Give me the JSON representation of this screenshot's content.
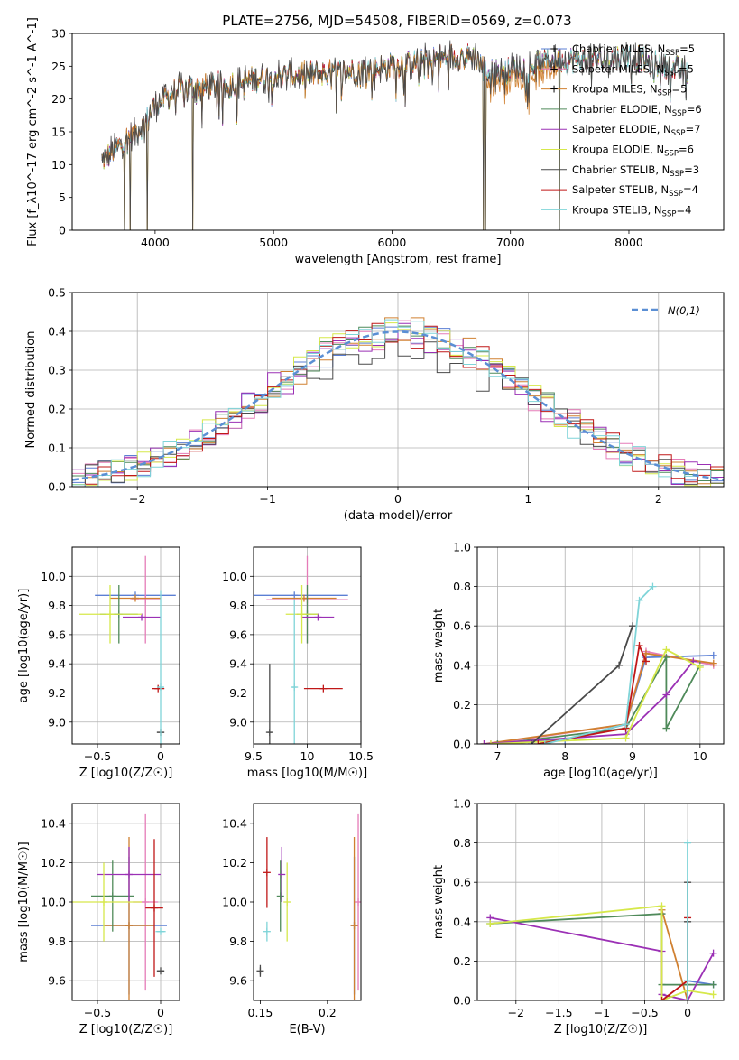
{
  "figure": {
    "title": "PLATE=2756, MJD=54508, FIBERID=0569, z=0.073"
  },
  "models": [
    {
      "name": "Chabrier MILES, N_SSP=5",
      "label_main": "Chabrier MILES, N",
      "label_sub": "SSP",
      "label_end": "=5",
      "color": "#5b7fd4"
    },
    {
      "name": "Salpeter MILES, N_SSP=5",
      "label_main": "Salpeter MILES, N",
      "label_sub": "SSP",
      "label_end": "=5",
      "color": "#e57bb8"
    },
    {
      "name": "Kroupa MILES, N_SSP=5",
      "label_main": "Kroupa MILES, N",
      "label_sub": "SSP",
      "label_end": "=5",
      "color": "#d08030"
    },
    {
      "name": "Chabrier ELODIE, N_SSP=6",
      "label_main": "Chabrier ELODIE, N",
      "label_sub": "SSP",
      "label_end": "=6",
      "color": "#4f8a5a"
    },
    {
      "name": "Salpeter ELODIE, N_SSP=7",
      "label_main": "Salpeter ELODIE, N",
      "label_sub": "SSP",
      "label_end": "=7",
      "color": "#9b30b5"
    },
    {
      "name": "Kroupa ELODIE, N_SSP=6",
      "label_main": "Kroupa ELODIE, N",
      "label_sub": "SSP",
      "label_end": "=6",
      "color": "#d6e84a"
    },
    {
      "name": "Chabrier STELIB, N_SSP=3",
      "label_main": "Chabrier STELIB, N",
      "label_sub": "SSP",
      "label_end": "=3",
      "color": "#4a4a4a"
    },
    {
      "name": "Salpeter STELIB, N_SSP=4",
      "label_main": "Salpeter STELIB, N",
      "label_sub": "SSP",
      "label_end": "=4",
      "color": "#c01818"
    },
    {
      "name": "Kroupa STELIB, N_SSP=4",
      "label_main": "Kroupa STELIB, N",
      "label_sub": "SSP",
      "label_end": "=4",
      "color": "#7fd4d8"
    }
  ],
  "chart_data": [
    {
      "id": "spectrum",
      "type": "line",
      "xlabel": "wavelength [Angstrom, rest frame]",
      "ylabel": "Flux [f_λ10^-17 erg cm^-2 s^-1 A^-1]",
      "xlim": [
        3300,
        8800
      ],
      "ylim": [
        0,
        30
      ],
      "xticks": [
        4000,
        5000,
        6000,
        7000,
        8000
      ],
      "yticks": [
        0,
        5,
        10,
        15,
        20,
        25,
        30
      ],
      "grid": false,
      "legend": "right",
      "continuum": {
        "x": [
          3550,
          3700,
          3900,
          4000,
          4200,
          4500,
          5000,
          5500,
          6000,
          6500,
          6700,
          6800,
          7000,
          7400,
          7800,
          8000,
          8500
        ],
        "y": [
          10.5,
          13,
          16,
          19,
          21.5,
          22,
          23.5,
          24,
          25,
          26.5,
          26.5,
          24,
          24.5,
          26,
          26,
          26.5,
          24
        ]
      },
      "drops": [
        3740,
        3790,
        3935,
        4320,
        6770,
        6790,
        7415
      ]
    },
    {
      "id": "residuals",
      "type": "histogram",
      "xlabel": "(data-model)/error",
      "ylabel": "Normed distribution",
      "xlim": [
        -2.5,
        2.5
      ],
      "ylim": [
        0,
        0.5
      ],
      "xticks": [
        -2,
        -1,
        0,
        1,
        2
      ],
      "yticks": [
        0.0,
        0.1,
        0.2,
        0.3,
        0.4,
        0.5
      ],
      "grid": true,
      "legend": "top-right",
      "reference_label": "N(0,1)",
      "reference_color": "#5b8fd4",
      "bins": 50
    },
    {
      "id": "age-vs-Z",
      "type": "scatter",
      "xlabel": "Z [log10(Z/Z☉)]",
      "ylabel": "age  [log10(age/yr)]",
      "xlim": [
        -0.7,
        0.15
      ],
      "ylim": [
        8.85,
        10.2
      ],
      "xticks": [
        -0.5,
        0.0
      ],
      "yticks": [
        9.0,
        9.2,
        9.4,
        9.6,
        9.8,
        10.0
      ],
      "grid": true,
      "points": [
        {
          "x": -0.2,
          "y": 9.87,
          "xerr": 0.32,
          "yerr": 0.0
        },
        {
          "x": -0.12,
          "y": 9.84,
          "xerr": 0.12,
          "yerr": 0.3
        },
        {
          "x": -0.2,
          "y": 9.85,
          "xerr": 0.2,
          "yerr": 0.0
        },
        {
          "x": -0.33,
          "y": 9.74,
          "xerr": 0.15,
          "yerr": 0.2
        },
        {
          "x": -0.15,
          "y": 9.72,
          "xerr": 0.15,
          "yerr": 0.0
        },
        {
          "x": -0.4,
          "y": 9.74,
          "xerr": 0.25,
          "yerr": 0.2
        },
        {
          "x": 0.0,
          "y": 8.93,
          "xerr": 0.03,
          "yerr": 0.0
        },
        {
          "x": -0.02,
          "y": 9.23,
          "xerr": 0.05,
          "yerr": 0.0
        },
        {
          "x": 0.0,
          "y": 9.24,
          "xerr": 0.02,
          "yerr": 0.66
        }
      ]
    },
    {
      "id": "age-vs-mass",
      "type": "scatter",
      "xlabel": "mass [log10(M/M☉)]",
      "ylabel": "",
      "xlim": [
        9.5,
        10.5
      ],
      "ylim": [
        8.85,
        10.2
      ],
      "xticks": [
        9.5,
        10.0,
        10.5
      ],
      "yticks": [
        9.0,
        9.2,
        9.4,
        9.6,
        9.8,
        10.0
      ],
      "grid": true,
      "points": [
        {
          "x": 9.88,
          "y": 9.87,
          "xerr": 0.5,
          "yerr": 0.0
        },
        {
          "x": 10.0,
          "y": 9.84,
          "xerr": 0.38,
          "yerr": 0.3
        },
        {
          "x": 9.97,
          "y": 9.85,
          "xerr": 0.3,
          "yerr": 0.0
        },
        {
          "x": 10.0,
          "y": 9.74,
          "xerr": 0.1,
          "yerr": 0.2
        },
        {
          "x": 10.1,
          "y": 9.72,
          "xerr": 0.15,
          "yerr": 0.0
        },
        {
          "x": 9.95,
          "y": 9.74,
          "xerr": 0.15,
          "yerr": 0.2
        },
        {
          "x": 9.65,
          "y": 8.93,
          "xerr": 0.02,
          "yerr": 0.47
        },
        {
          "x": 10.15,
          "y": 9.23,
          "xerr": 0.18,
          "yerr": 0.0
        },
        {
          "x": 9.88,
          "y": 9.24,
          "xerr": 0.02,
          "yerr": 0.6
        }
      ]
    },
    {
      "id": "weight-vs-age",
      "type": "line",
      "xlabel": "age  [log10(age/yr)]",
      "ylabel": "mass weight",
      "xlim": [
        6.7,
        10.35
      ],
      "ylim": [
        0,
        1
      ],
      "xticks": [
        7,
        8,
        9,
        10
      ],
      "yticks": [
        0.0,
        0.2,
        0.4,
        0.6,
        0.8,
        1.0
      ],
      "grid": true,
      "series": [
        {
          "x": [
            7.0,
            8.0,
            8.9,
            9.2,
            10.2
          ],
          "y": [
            0.0,
            0.02,
            0.1,
            0.44,
            0.45
          ]
        },
        {
          "x": [
            6.9,
            8.9,
            9.2,
            10.2
          ],
          "y": [
            0.0,
            0.1,
            0.47,
            0.4
          ]
        },
        {
          "x": [
            6.8,
            8.9,
            9.2,
            10.2
          ],
          "y": [
            0.0,
            0.1,
            0.46,
            0.41
          ]
        },
        {
          "x": [
            7.0,
            8.9,
            9.5,
            9.5,
            10.0
          ],
          "y": [
            0.0,
            0.08,
            0.44,
            0.08,
            0.4
          ]
        },
        {
          "x": [
            6.8,
            8.9,
            9.5,
            9.9
          ],
          "y": [
            0.0,
            0.05,
            0.25,
            0.42
          ]
        },
        {
          "x": [
            6.9,
            8.9,
            9.5,
            10.0
          ],
          "y": [
            0.0,
            0.03,
            0.48,
            0.39
          ]
        },
        {
          "x": [
            7.5,
            8.8,
            9.0
          ],
          "y": [
            0.0,
            0.4,
            0.6
          ]
        },
        {
          "x": [
            7.6,
            8.9,
            9.1,
            9.2
          ],
          "y": [
            0.0,
            0.08,
            0.5,
            0.42
          ]
        },
        {
          "x": [
            7.7,
            8.9,
            9.1,
            9.3
          ],
          "y": [
            0.0,
            0.1,
            0.73,
            0.8
          ]
        }
      ]
    },
    {
      "id": "mass-vs-Z",
      "type": "scatter",
      "xlabel": "Z [log10(Z/Z☉)]",
      "ylabel": "mass [log10(M/M☉)]",
      "xlim": [
        -0.7,
        0.15
      ],
      "ylim": [
        9.5,
        10.5
      ],
      "xticks": [
        -0.5,
        0.0
      ],
      "yticks": [
        9.6,
        9.8,
        10.0,
        10.2,
        10.4
      ],
      "grid": true,
      "points": [
        {
          "x": -0.25,
          "y": 9.88,
          "xerr": 0.3,
          "yerr": 0.35
        },
        {
          "x": -0.12,
          "y": 10.0,
          "xerr": 0.1,
          "yerr": 0.45
        },
        {
          "x": -0.25,
          "y": 9.88,
          "xerr": 0.2,
          "yerr": 0.45
        },
        {
          "x": -0.38,
          "y": 10.03,
          "xerr": 0.17,
          "yerr": 0.18
        },
        {
          "x": -0.25,
          "y": 10.14,
          "xerr": 0.25,
          "yerr": 0.14
        },
        {
          "x": -0.45,
          "y": 10.0,
          "xerr": 0.3,
          "yerr": 0.2
        },
        {
          "x": 0.0,
          "y": 9.65,
          "xerr": 0.03,
          "yerr": 0.0
        },
        {
          "x": -0.05,
          "y": 9.97,
          "xerr": 0.07,
          "yerr": 0.35
        },
        {
          "x": 0.0,
          "y": 9.85,
          "xerr": 0.04,
          "yerr": 0.0
        }
      ]
    },
    {
      "id": "mass-vs-EBV",
      "type": "scatter",
      "xlabel": "E(B-V)",
      "ylabel": "",
      "xlim": [
        0.145,
        0.225
      ],
      "ylim": [
        9.5,
        10.5
      ],
      "xticks": [
        0.15,
        0.2
      ],
      "yticks": [
        9.6,
        9.8,
        10.0,
        10.2,
        10.4
      ],
      "grid": false,
      "points": [
        {
          "x": 0.22,
          "y": 9.88,
          "xerr": 0.0,
          "yerr": 0.35
        },
        {
          "x": 0.223,
          "y": 10.0,
          "xerr": 0.0,
          "yerr": 0.45
        },
        {
          "x": 0.22,
          "y": 9.88,
          "xerr": 0.0,
          "yerr": 0.45
        },
        {
          "x": 0.165,
          "y": 10.03,
          "xerr": 0.0,
          "yerr": 0.18
        },
        {
          "x": 0.166,
          "y": 10.14,
          "xerr": 0.0,
          "yerr": 0.14
        },
        {
          "x": 0.17,
          "y": 10.0,
          "xerr": 0.0,
          "yerr": 0.2
        },
        {
          "x": 0.15,
          "y": 9.65,
          "xerr": 0.0,
          "yerr": 0.03
        },
        {
          "x": 0.155,
          "y": 10.15,
          "xerr": 0.0,
          "yerr": 0.18
        },
        {
          "x": 0.155,
          "y": 9.85,
          "xerr": 0.0,
          "yerr": 0.05
        }
      ]
    },
    {
      "id": "weight-vs-Z",
      "type": "line",
      "xlabel": "Z [log10(Z/Z☉)]",
      "ylabel": "mass weight",
      "xlim": [
        -2.45,
        0.42
      ],
      "ylim": [
        0,
        1
      ],
      "xticks": [
        -2.0,
        -1.5,
        -1.0,
        -0.5,
        0.0
      ],
      "yticks": [
        0.0,
        0.2,
        0.4,
        0.6,
        0.8,
        1.0
      ],
      "grid": true,
      "series": [
        {
          "x": [
            0.0,
            0.0,
            0.3
          ],
          "y": [
            0.0,
            0.1,
            0.08
          ]
        },
        {
          "x": [
            -0.3,
            -0.3,
            0.0
          ],
          "y": [
            0.44,
            0.0,
            0.1
          ]
        },
        {
          "x": [
            -0.3,
            0.0,
            0.0
          ],
          "y": [
            0.46,
            0.0,
            0.1
          ]
        },
        {
          "x": [
            -2.3,
            -0.3,
            -0.3,
            0.0,
            0.3
          ],
          "y": [
            0.39,
            0.44,
            0.08,
            0.08,
            0.08
          ]
        },
        {
          "x": [
            -2.3,
            -0.3,
            -0.3,
            0.0,
            0.3
          ],
          "y": [
            0.42,
            0.25,
            0.03,
            0.0,
            0.24
          ]
        },
        {
          "x": [
            -2.3,
            -0.3,
            -0.3,
            0.0,
            0.3
          ],
          "y": [
            0.39,
            0.48,
            0.0,
            0.05,
            0.03
          ]
        },
        {
          "x": [
            0.0,
            0.0,
            0.0
          ],
          "y": [
            0.0,
            0.4,
            0.6
          ]
        },
        {
          "x": [
            -0.3,
            0.0,
            0.0
          ],
          "y": [
            0.0,
            0.1,
            0.42
          ]
        },
        {
          "x": [
            0.0,
            0.0,
            0.0
          ],
          "y": [
            0.0,
            0.1,
            0.8
          ]
        }
      ]
    }
  ]
}
